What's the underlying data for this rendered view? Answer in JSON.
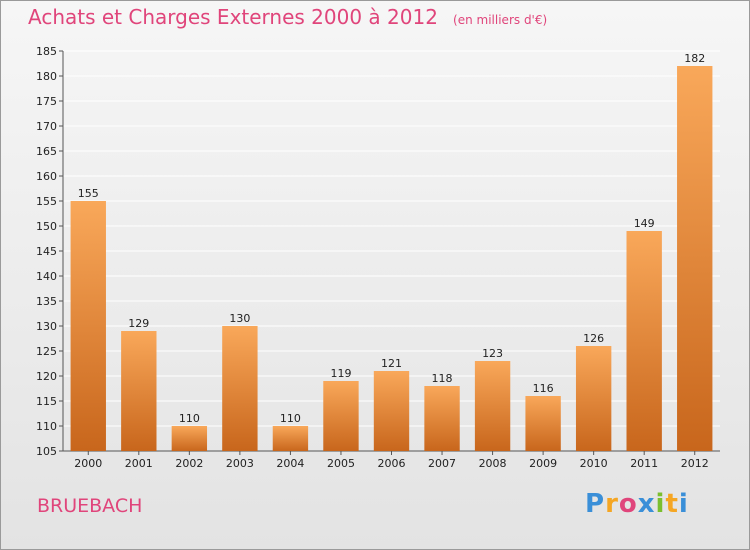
{
  "chart_data": {
    "type": "bar",
    "title": "Achats et Charges Externes 2000 à 2012",
    "subtitle": "(en milliers d'€)",
    "categories": [
      "2000",
      "2001",
      "2002",
      "2003",
      "2004",
      "2005",
      "2006",
      "2007",
      "2008",
      "2009",
      "2010",
      "2011",
      "2012"
    ],
    "values": [
      155,
      129,
      110,
      130,
      110,
      119,
      121,
      118,
      123,
      116,
      126,
      149,
      182
    ],
    "ylim": [
      105,
      185
    ],
    "ytick_step": 5,
    "grid": true,
    "bar_color_light": "#f9a85a",
    "bar_color_dark": "#c8661c"
  },
  "commune": "BRUEBACH",
  "logo": {
    "letters": [
      "P",
      "r",
      "o",
      "x",
      "i",
      "t",
      "i"
    ],
    "colors": [
      "#3a8fd8",
      "#f5a623",
      "#e0457b",
      "#3a8fd8",
      "#7bbf2e",
      "#f5a623",
      "#3a8fd8"
    ]
  },
  "colors": {
    "accent": "#e0457b"
  }
}
